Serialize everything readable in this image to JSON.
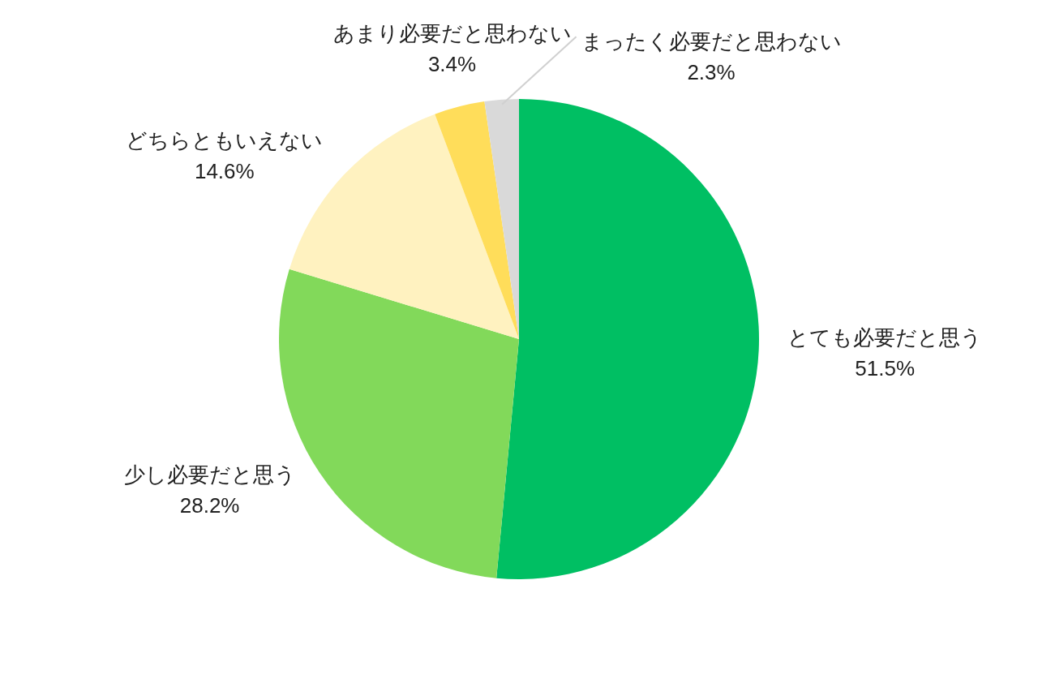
{
  "chart_data": {
    "type": "pie",
    "categories": [
      "とても必要だと思う",
      "少し必要だと思う",
      "どちらともいえない",
      "あまり必要だと思わない",
      "まったく必要だと思わない"
    ],
    "values": [
      51.5,
      28.2,
      14.6,
      3.4,
      2.3
    ],
    "colors": [
      "#00bf63",
      "#82d95a",
      "#fff2c0",
      "#ffdd5a",
      "#d9d9d9"
    ],
    "value_labels": [
      "51.5%",
      "28.2%",
      "14.6%",
      "3.4%",
      "2.3%"
    ]
  }
}
